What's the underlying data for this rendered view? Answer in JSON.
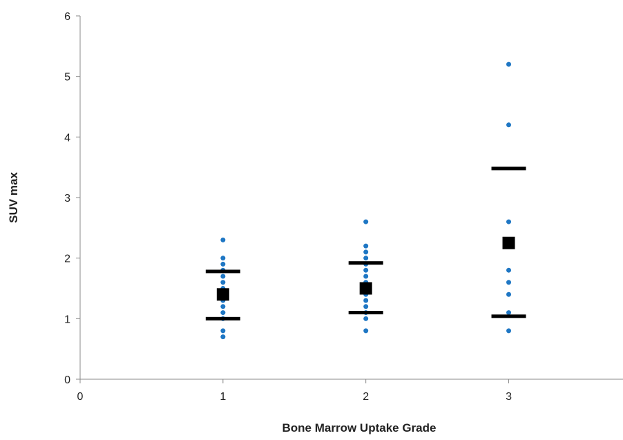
{
  "chart_data": {
    "type": "scatter",
    "title": "",
    "xlabel": "Bone Marrow Uptake Grade",
    "ylabel": "SUV max",
    "xlim": [
      0,
      3.8
    ],
    "ylim": [
      0,
      6
    ],
    "x_ticks": [
      "0",
      "1",
      "2",
      "3"
    ],
    "y_ticks": [
      "0",
      "1",
      "2",
      "3",
      "4",
      "5",
      "6"
    ],
    "grid": false,
    "legend": "none",
    "colors": {
      "points": "#1f77c4",
      "summary": "#000000",
      "axis": "#888888"
    },
    "series": [
      {
        "marker": "circle",
        "points": [
          {
            "x": 1,
            "y": 0.7
          },
          {
            "x": 1,
            "y": 0.8
          },
          {
            "x": 1,
            "y": 1.0
          },
          {
            "x": 1,
            "y": 1.1
          },
          {
            "x": 1,
            "y": 1.2
          },
          {
            "x": 1,
            "y": 1.3
          },
          {
            "x": 1,
            "y": 1.4
          },
          {
            "x": 1,
            "y": 1.5
          },
          {
            "x": 1,
            "y": 1.6
          },
          {
            "x": 1,
            "y": 1.7
          },
          {
            "x": 1,
            "y": 1.8
          },
          {
            "x": 1,
            "y": 1.9
          },
          {
            "x": 1,
            "y": 2.0
          },
          {
            "x": 1,
            "y": 2.3
          },
          {
            "x": 2,
            "y": 0.8
          },
          {
            "x": 2,
            "y": 1.0
          },
          {
            "x": 2,
            "y": 1.1
          },
          {
            "x": 2,
            "y": 1.2
          },
          {
            "x": 2,
            "y": 1.3
          },
          {
            "x": 2,
            "y": 1.4
          },
          {
            "x": 2,
            "y": 1.5
          },
          {
            "x": 2,
            "y": 1.6
          },
          {
            "x": 2,
            "y": 1.7
          },
          {
            "x": 2,
            "y": 1.8
          },
          {
            "x": 2,
            "y": 1.9
          },
          {
            "x": 2,
            "y": 2.0
          },
          {
            "x": 2,
            "y": 2.1
          },
          {
            "x": 2,
            "y": 2.2
          },
          {
            "x": 2,
            "y": 2.6
          },
          {
            "x": 3,
            "y": 0.8
          },
          {
            "x": 3,
            "y": 1.1
          },
          {
            "x": 3,
            "y": 1.4
          },
          {
            "x": 3,
            "y": 1.6
          },
          {
            "x": 3,
            "y": 1.8
          },
          {
            "x": 3,
            "y": 2.2
          },
          {
            "x": 3,
            "y": 2.6
          },
          {
            "x": 3,
            "y": 4.2
          },
          {
            "x": 3,
            "y": 5.2
          }
        ]
      },
      {
        "marker": "square",
        "points": [
          {
            "x": 1,
            "y": 1.4
          },
          {
            "x": 2,
            "y": 1.5
          },
          {
            "x": 3,
            "y": 2.25
          }
        ]
      },
      {
        "marker": "dash",
        "points": [
          {
            "x": 1,
            "y": 1.78
          },
          {
            "x": 1,
            "y": 1.0
          },
          {
            "x": 2,
            "y": 1.92
          },
          {
            "x": 2,
            "y": 1.1
          },
          {
            "x": 3,
            "y": 3.48
          },
          {
            "x": 3,
            "y": 1.04
          }
        ]
      }
    ]
  }
}
